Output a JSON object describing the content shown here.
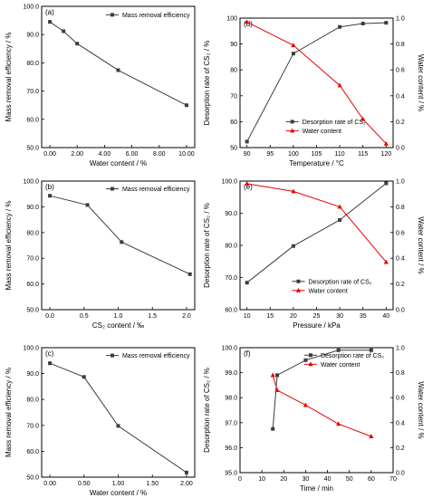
{
  "colors": {
    "black": "#3c3c3c",
    "red": "#e60000"
  },
  "chart_data": [
    {
      "id": "a",
      "panel_label": "(a)",
      "type": "line",
      "xlabel": "Water content / %",
      "ylabel": "Mass removal efficiency / %",
      "x_ticks": [
        "0.00",
        "2.00",
        "4.00",
        "6.00",
        "8.00",
        "10.00"
      ],
      "xlim": [
        -0.6,
        10.6
      ],
      "y_ticks": [
        "50.0",
        "60.0",
        "70.0",
        "80.0",
        "90.0",
        "100.0"
      ],
      "ylim": [
        50,
        100
      ],
      "grid": false,
      "legend_position": "top-right",
      "series": [
        {
          "name": "Mass removal efficiency",
          "color": "black",
          "marker": "square",
          "axis": "left",
          "x": [
            0.0,
            1.0,
            2.0,
            5.0,
            10.0
          ],
          "y": [
            94.5,
            91.2,
            86.8,
            77.4,
            65.0
          ]
        }
      ]
    },
    {
      "id": "b",
      "panel_label": "(b)",
      "type": "line",
      "xlabel": "CS₂ content / ‰",
      "ylabel": "Mass removal efficiency / %",
      "x_ticks": [
        "0.0",
        "0.5",
        "1.0",
        "1.5",
        "2.0"
      ],
      "xlim": [
        -0.12,
        2.12
      ],
      "y_ticks": [
        "50.0",
        "60.0",
        "70.0",
        "80.0",
        "90.0",
        "100.0"
      ],
      "ylim": [
        50,
        100
      ],
      "grid": false,
      "legend_position": "top-right",
      "series": [
        {
          "name": "Mass removal efficiency",
          "color": "black",
          "marker": "square",
          "axis": "left",
          "x": [
            0.0,
            0.55,
            1.05,
            2.05
          ],
          "y": [
            94.3,
            90.7,
            76.3,
            63.8
          ]
        }
      ]
    },
    {
      "id": "c",
      "panel_label": "(c)",
      "type": "line",
      "xlabel": "Water content / %",
      "ylabel": "Mass removal efficiency / %",
      "x_ticks": [
        "0.00",
        "0.50",
        "1.00",
        "1.50",
        "2.00"
      ],
      "xlim": [
        -0.12,
        2.12
      ],
      "y_ticks": [
        "50.0",
        "60.0",
        "70.0",
        "80.0",
        "90.0",
        "100.0"
      ],
      "ylim": [
        50,
        100
      ],
      "grid": false,
      "legend_position": "top-right",
      "series": [
        {
          "name": "Mass removal efficiency",
          "color": "black",
          "marker": "square",
          "axis": "left",
          "x": [
            0.0,
            0.5,
            1.0,
            2.0
          ],
          "y": [
            94.0,
            88.7,
            69.8,
            51.8
          ]
        }
      ]
    },
    {
      "id": "d",
      "panel_label": "(d)",
      "type": "line",
      "xlabel": "Temperature / °C",
      "ylabel": "Desorption rate of CS₂ / %",
      "y2label": "Water content / %",
      "x_ticks": [
        "90",
        "95",
        "100",
        "105",
        "110",
        "115",
        "120"
      ],
      "xlim": [
        88.5,
        121.5
      ],
      "y_ticks": [
        "50",
        "60",
        "70",
        "80",
        "90",
        "100"
      ],
      "ylim": [
        50,
        100
      ],
      "y2_ticks": [
        "0.0",
        "0.2",
        "0.4",
        "0.6",
        "0.8",
        "1.0"
      ],
      "y2lim": [
        0,
        1
      ],
      "grid": false,
      "legend_position": "bottom-center",
      "series": [
        {
          "name": "Desorption rate of CS₂",
          "color": "black",
          "marker": "square",
          "axis": "left",
          "x": [
            90,
            100,
            110,
            115,
            120
          ],
          "y": [
            52.3,
            86.3,
            96.6,
            97.9,
            98.2
          ]
        },
        {
          "name": "Water content",
          "color": "red",
          "marker": "triangle",
          "axis": "right",
          "x": [
            90,
            100,
            110,
            115,
            120
          ],
          "y": [
            0.97,
            0.79,
            0.48,
            0.22,
            0.03
          ]
        }
      ]
    },
    {
      "id": "e",
      "panel_label": "(e)",
      "type": "line",
      "xlabel": "Pressure / kPa",
      "ylabel": "Desorption rate of CS₂ / %",
      "y2label": "Water content / %",
      "x_ticks": [
        "10",
        "15",
        "20",
        "25",
        "30",
        "35",
        "40"
      ],
      "xlim": [
        8.5,
        41.5
      ],
      "y_ticks": [
        "60.0",
        "70.0",
        "80.0",
        "90.0",
        "100.0"
      ],
      "ylim": [
        60,
        100
      ],
      "y2_ticks": [
        "0.0",
        "0.2",
        "0.4",
        "0.6",
        "0.8",
        "1.0"
      ],
      "y2lim": [
        0,
        1
      ],
      "grid": false,
      "legend_position": "bottom-right",
      "series": [
        {
          "name": "Desorption rate of CS₂",
          "color": "black",
          "marker": "square",
          "axis": "left",
          "x": [
            10,
            20,
            30,
            40
          ],
          "y": [
            68.4,
            79.8,
            87.9,
            99.3
          ]
        },
        {
          "name": "Water content",
          "color": "red",
          "marker": "triangle",
          "axis": "right",
          "x": [
            10,
            20,
            30,
            40
          ],
          "y": [
            0.98,
            0.92,
            0.8,
            0.37
          ]
        }
      ]
    },
    {
      "id": "f",
      "panel_label": "(f)",
      "type": "line",
      "xlabel": "Time / min",
      "ylabel": "Desorption rate of CS₂ / %",
      "y2label": "Water content / %",
      "x_ticks": [
        "0",
        "10",
        "20",
        "30",
        "40",
        "50",
        "60",
        "70"
      ],
      "xlim": [
        0,
        70
      ],
      "y_ticks": [
        "95.0",
        "96.0",
        "97.0",
        "98.0",
        "99.0",
        "100.0"
      ],
      "ylim": [
        95,
        100
      ],
      "y2_ticks": [
        "0.0",
        "0.2",
        "0.4",
        "0.6",
        "0.8",
        "1.0"
      ],
      "y2lim": [
        0,
        1
      ],
      "grid": false,
      "legend_position": "top-right",
      "series": [
        {
          "name": "Desorption rate of CS₂",
          "color": "black",
          "marker": "square",
          "axis": "left",
          "x": [
            15,
            17,
            30,
            45,
            60
          ],
          "y": [
            96.75,
            98.9,
            99.5,
            99.9,
            99.9
          ]
        },
        {
          "name": "Water content",
          "color": "red",
          "marker": "triangle",
          "axis": "right",
          "x": [
            15,
            17,
            30,
            45,
            60
          ],
          "y": [
            0.78,
            0.66,
            0.54,
            0.39,
            0.29
          ]
        }
      ]
    }
  ]
}
